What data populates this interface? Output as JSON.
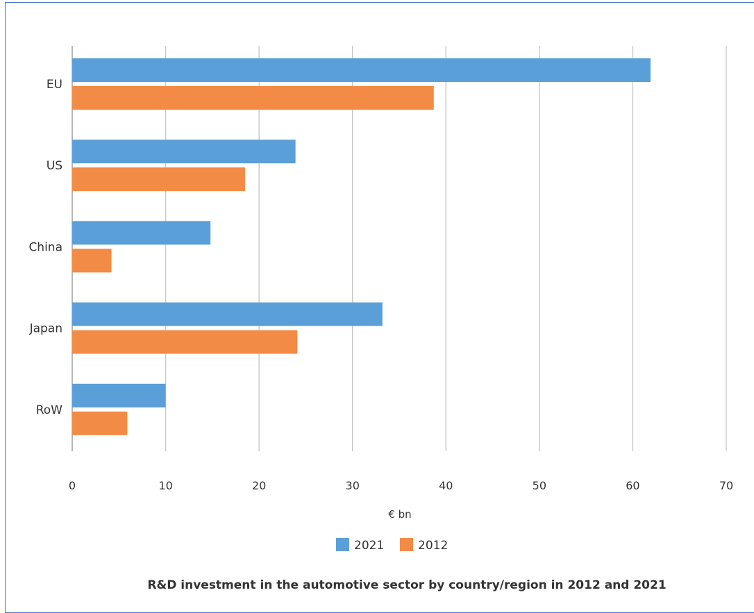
{
  "chart_data": {
    "type": "bar",
    "orientation": "horizontal",
    "title": "R&D investment in the automotive sector by country/region in 2012 and 2021",
    "xlabel": "€ bn",
    "ylabel": "",
    "xlim": [
      0,
      70
    ],
    "xticks": [
      "0",
      "10",
      "20",
      "30",
      "40",
      "50",
      "60",
      "70"
    ],
    "categories": [
      "EU",
      "US",
      "China",
      "Japan",
      "RoW"
    ],
    "series": [
      {
        "name": "2021",
        "color": "#5b9fd8",
        "values": [
          61.9,
          23.9,
          14.8,
          33.2,
          10.0
        ]
      },
      {
        "name": "2012",
        "color": "#f28b45",
        "values": [
          38.7,
          18.5,
          4.2,
          24.1,
          5.9
        ]
      }
    ],
    "grid": "vertical",
    "legend_position": "bottom"
  }
}
